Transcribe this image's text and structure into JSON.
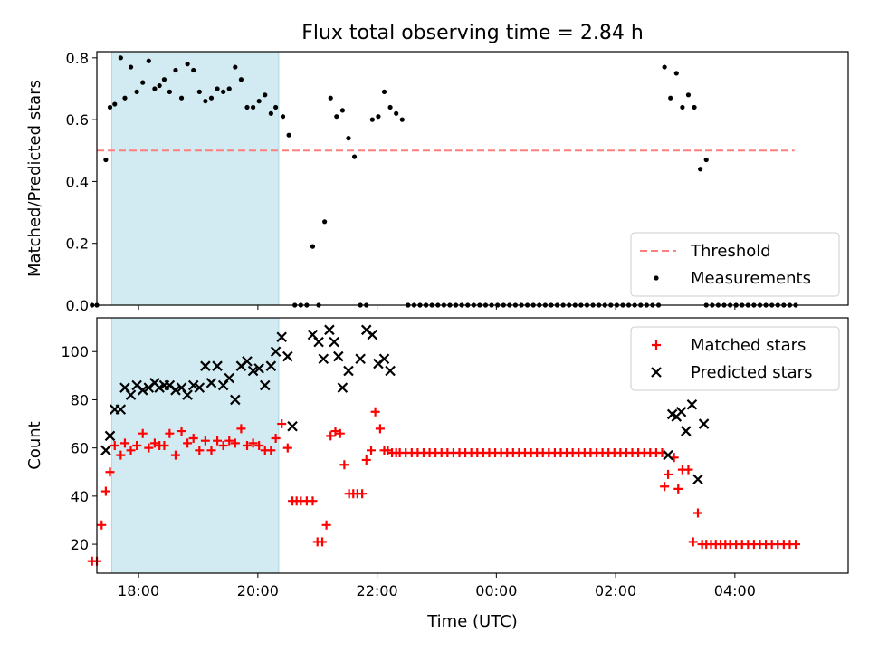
{
  "chart_data": {
    "title": "Flux total observing time = 2.84 h",
    "xlabel": "Time (UTC)",
    "x_unit": "hours since 00:00 UTC (negative = previous evening)",
    "xlim": [
      -6.7,
      5.9
    ],
    "xticks": [
      -6,
      -4,
      -2,
      0,
      2,
      4
    ],
    "xtick_labels": [
      "18:00",
      "20:00",
      "22:00",
      "00:00",
      "02:00",
      "04:00"
    ],
    "shaded_span": {
      "start": -6.45,
      "end": -3.65,
      "color": "#add8e6"
    },
    "panels": [
      {
        "type": "scatter",
        "ylabel": "Matched/Predicted stars",
        "ylim": [
          0,
          0.82
        ],
        "yticks": [
          0,
          0.2,
          0.4,
          0.6,
          0.8
        ],
        "ytick_labels": [
          "0.0",
          "0.2",
          "0.4",
          "0.6",
          "0.8"
        ],
        "threshold": {
          "name": "Threshold",
          "value": 0.5,
          "x_range": [
            -6.7,
            5.0
          ],
          "color": "#ff7f7f"
        },
        "legend_position": "lower-right",
        "series": [
          {
            "name": "Measurements",
            "color": "#000000",
            "marker": "dot",
            "x": [
              -6.78,
              -6.7,
              -6.55,
              -6.48,
              -6.4,
              -6.3,
              -6.23,
              -6.13,
              -6.03,
              -5.93,
              -5.83,
              -5.73,
              -5.65,
              -5.57,
              -5.48,
              -5.38,
              -5.28,
              -5.18,
              -5.08,
              -4.98,
              -4.88,
              -4.78,
              -4.68,
              -4.58,
              -4.48,
              -4.38,
              -4.28,
              -4.18,
              -4.08,
              -3.98,
              -3.88,
              -3.78,
              -3.7,
              -3.58,
              -3.48,
              -3.38,
              -3.28,
              -3.18,
              -3.08,
              -2.98,
              -2.88,
              -2.78,
              -2.68,
              -2.58,
              -2.48,
              -2.38,
              -2.28,
              -2.18,
              -2.08,
              -1.98,
              -1.88,
              -1.78,
              -1.68,
              -1.58,
              -1.48,
              -1.38,
              -1.28,
              -1.18,
              2.82,
              2.92,
              3.02,
              3.12,
              3.22,
              3.32,
              3.42,
              3.52
            ],
            "y": [
              0.0,
              0.0,
              0.47,
              0.64,
              0.65,
              0.8,
              0.67,
              0.77,
              0.69,
              0.72,
              0.79,
              0.7,
              0.71,
              0.73,
              0.69,
              0.76,
              0.67,
              0.78,
              0.76,
              0.69,
              0.66,
              0.67,
              0.7,
              0.69,
              0.7,
              0.77,
              0.73,
              0.64,
              0.64,
              0.66,
              0.68,
              0.62,
              0.64,
              0.61,
              0.55,
              0.0,
              0.0,
              0.0,
              0.19,
              0.0,
              0.27,
              0.67,
              0.61,
              0.63,
              0.54,
              0.48,
              0.0,
              0.0,
              0.6,
              0.61,
              0.69,
              0.64,
              0.62,
              0.6,
              0.0,
              0.0,
              0.0,
              0.0,
              0.77,
              0.67,
              0.75,
              0.64,
              0.68,
              0.64,
              0.44,
              0.47
            ]
          }
        ],
        "zero_runs": [
          {
            "from": -1.18,
            "to": 2.78,
            "step": 0.1
          },
          {
            "from": 3.52,
            "to": 5.1,
            "step": 0.1
          }
        ]
      },
      {
        "type": "scatter",
        "ylabel": "Count",
        "ylim": [
          8,
          114
        ],
        "yticks": [
          20,
          40,
          60,
          80,
          100
        ],
        "ytick_labels": [
          "20",
          "40",
          "60",
          "80",
          "100"
        ],
        "legend_position": "upper-right",
        "series": [
          {
            "name": "Matched stars",
            "color": "#ff0000",
            "marker": "plus",
            "x": [
              -6.78,
              -6.7,
              -6.62,
              -6.55,
              -6.48,
              -6.4,
              -6.3,
              -6.23,
              -6.13,
              -6.03,
              -5.93,
              -5.83,
              -5.73,
              -5.65,
              -5.57,
              -5.48,
              -5.38,
              -5.28,
              -5.18,
              -5.08,
              -4.98,
              -4.88,
              -4.78,
              -4.68,
              -4.58,
              -4.48,
              -4.38,
              -4.28,
              -4.18,
              -4.08,
              -3.98,
              -3.88,
              -3.78,
              -3.7,
              -3.6,
              -3.5,
              -3.42,
              -3.35,
              -3.28,
              -3.18,
              -3.08,
              -3.0,
              -2.92,
              -2.85,
              -2.78,
              -2.7,
              -2.62,
              -2.55,
              -2.47,
              -2.4,
              -2.33,
              -2.25,
              -2.18,
              -2.1,
              -2.03,
              -1.95,
              -1.88,
              -1.82,
              -1.75,
              -1.68,
              2.82,
              2.88,
              2.98,
              3.05,
              3.12,
              3.22,
              3.3,
              3.38,
              3.45,
              3.52,
              3.6,
              3.68,
              3.76,
              3.84,
              3.92,
              4.02,
              4.12,
              4.22,
              4.32,
              4.42,
              4.52,
              4.62,
              4.72,
              4.82,
              4.92,
              5.02
            ],
            "y": [
              13,
              13,
              28,
              42,
              50,
              61,
              57,
              62,
              59,
              61,
              66,
              60,
              62,
              61,
              61,
              66,
              57,
              67,
              62,
              64,
              59,
              63,
              59,
              63,
              61,
              63,
              62,
              68,
              61,
              62,
              61,
              59,
              59,
              64,
              70,
              60,
              38,
              38,
              38,
              38,
              38,
              21,
              21,
              28,
              65,
              67,
              66,
              53,
              41,
              41,
              41,
              41,
              55,
              59,
              75,
              68,
              59,
              59,
              58,
              58,
              44,
              49,
              56,
              43,
              51,
              51,
              21,
              33,
              20,
              20,
              20,
              20,
              20,
              20,
              20,
              20,
              20,
              20,
              20,
              20,
              20,
              20,
              20,
              20,
              20,
              20
            ]
          },
          {
            "name": "Predicted stars",
            "color": "#000000",
            "marker": "x",
            "x": [
              -6.55,
              -6.48,
              -6.4,
              -6.3,
              -6.23,
              -6.13,
              -6.03,
              -5.93,
              -5.83,
              -5.73,
              -5.65,
              -5.57,
              -5.48,
              -5.38,
              -5.28,
              -5.18,
              -5.08,
              -4.98,
              -4.88,
              -4.78,
              -4.68,
              -4.58,
              -4.48,
              -4.38,
              -4.28,
              -4.18,
              -4.08,
              -3.98,
              -3.88,
              -3.78,
              -3.7,
              -3.6,
              -3.5,
              -3.42,
              -3.08,
              -2.98,
              -2.9,
              -2.8,
              -2.72,
              -2.65,
              -2.58,
              -2.48,
              -2.28,
              -2.18,
              -2.08,
              -1.98,
              -1.88,
              -1.78,
              2.88,
              2.95,
              3.02,
              3.1,
              3.18,
              3.28,
              3.38,
              3.48
            ],
            "y": [
              59,
              65,
              76,
              76,
              85,
              82,
              86,
              84,
              85,
              87,
              85,
              86,
              86,
              84,
              85,
              82,
              86,
              85,
              94,
              87,
              94,
              86,
              89,
              80,
              94,
              96,
              92,
              93,
              86,
              94,
              100,
              106,
              98,
              69,
              107,
              104,
              97,
              109,
              104,
              98,
              85,
              92,
              97,
              109,
              107,
              95,
              97,
              92,
              57,
              74,
              73,
              75,
              67,
              78,
              47,
              70
            ]
          }
        ],
        "constant_runs": [
          {
            "series": "Matched stars",
            "from": -1.62,
            "to": 2.82,
            "step": 0.1,
            "value": 58
          }
        ]
      }
    ]
  }
}
